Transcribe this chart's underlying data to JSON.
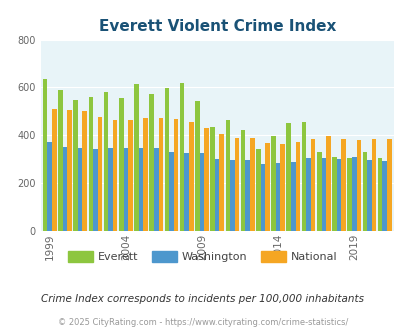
{
  "title": "Everett Violent Crime Index",
  "subtitle": "Crime Index corresponds to incidents per 100,000 inhabitants",
  "footer": "© 2025 CityRating.com - https://www.cityrating.com/crime-statistics/",
  "years": [
    1999,
    2000,
    2001,
    2002,
    2003,
    2004,
    2005,
    2006,
    2007,
    2008,
    2009,
    2010,
    2011,
    2012,
    2013,
    2014,
    2015,
    2016,
    2017,
    2018,
    2019,
    2020,
    2021
  ],
  "everett": [
    635,
    590,
    548,
    560,
    582,
    554,
    614,
    574,
    598,
    620,
    543,
    435,
    463,
    423,
    344,
    396,
    451,
    455,
    330,
    309,
    305,
    330,
    305
  ],
  "washington": [
    370,
    350,
    345,
    343,
    347,
    345,
    347,
    345,
    332,
    328,
    328,
    300,
    298,
    297,
    278,
    283,
    287,
    305,
    305,
    303,
    309,
    295,
    293
  ],
  "national": [
    508,
    507,
    500,
    475,
    466,
    465,
    474,
    474,
    467,
    455,
    430,
    405,
    388,
    387,
    368,
    362,
    373,
    385,
    395,
    384,
    380,
    384,
    385
  ],
  "bar_colors": {
    "everett": "#8dc63f",
    "washington": "#4d97cd",
    "national": "#f5a623"
  },
  "plot_bg": "#e8f4f8",
  "title_color": "#1a5276",
  "grid_color": "#ffffff",
  "ylim": [
    0,
    800
  ],
  "yticks": [
    0,
    200,
    400,
    600,
    800
  ],
  "xtick_labels": [
    "1999",
    "2004",
    "2009",
    "2014",
    "2019"
  ],
  "xtick_year_positions": [
    1999,
    2004,
    2009,
    2014,
    2019
  ]
}
